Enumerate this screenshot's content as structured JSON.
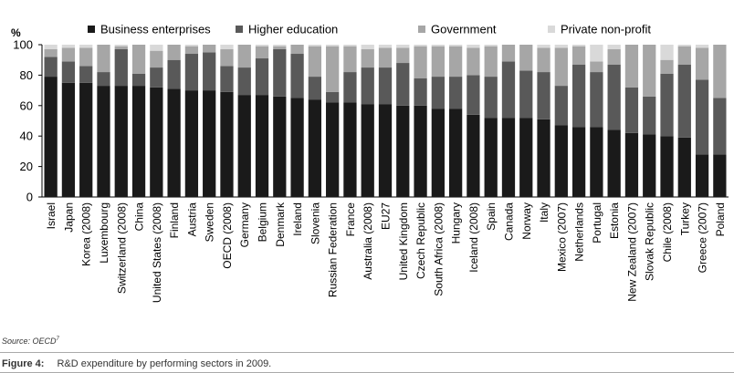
{
  "colors": {
    "business": "#1a1a1a",
    "higher": "#595959",
    "government": "#a6a6a6",
    "private": "#d9d9d9",
    "axis": "#000000",
    "text": "#000000"
  },
  "source": {
    "label": "Source: OECD",
    "ref": "7"
  },
  "caption": {
    "label": "Figure 4:",
    "text": "R&D expenditure by performing sectors in 2009."
  },
  "chart_data": {
    "type": "bar",
    "stacked": true,
    "title": "",
    "xlabel": "",
    "ylabel": "%",
    "ylim": [
      0,
      100
    ],
    "yticks": [
      0,
      20,
      40,
      60,
      80,
      100
    ],
    "legend_position": "top",
    "categories": [
      "Israel",
      "Japan",
      "Korea (2008)",
      "Luxembourg",
      "Switzerland (2008)",
      "China",
      "United States (2008)",
      "Finland",
      "Austria",
      "Sweden",
      "OECD (2008)",
      "Germany",
      "Belgium",
      "Denmark",
      "Ireland",
      "Slovenia",
      "Russian Federation",
      "France",
      "Australia (2008)",
      "EU27",
      "United Kingdom",
      "Czech Republic",
      "South Africa (2008)",
      "Hungary",
      "Iceland (2008)",
      "Spain",
      "Canada",
      "Norway",
      "Italy",
      "Mexico (2007)",
      "Netherlands",
      "Portugal",
      "Estonia",
      "New Zealand (2007)",
      "Slovak Republic",
      "Chile (2008)",
      "Turkey",
      "Greece (2007)",
      "Poland"
    ],
    "series": [
      {
        "name": "Business enterprises",
        "key": "business",
        "values": [
          79,
          75,
          75,
          73,
          73,
          73,
          72,
          71,
          70,
          70,
          69,
          67,
          67,
          66,
          65,
          64,
          62,
          62,
          61,
          61,
          60,
          60,
          58,
          58,
          54,
          52,
          52,
          52,
          51,
          47,
          46,
          46,
          44,
          42,
          41,
          40,
          39,
          28,
          28
        ]
      },
      {
        "name": "Higher education",
        "key": "higher",
        "values": [
          13,
          14,
          11,
          9,
          24,
          8,
          13,
          19,
          24,
          25,
          17,
          18,
          24,
          31,
          29,
          15,
          7,
          20,
          24,
          24,
          28,
          18,
          21,
          21,
          26,
          27,
          37,
          31,
          31,
          26,
          41,
          36,
          43,
          30,
          25,
          41,
          48,
          49,
          37
        ]
      },
      {
        "name": "Government",
        "key": "government",
        "values": [
          5,
          9,
          12,
          18,
          2,
          19,
          11,
          10,
          5,
          5,
          11,
          15,
          8,
          2,
          6,
          20,
          30,
          17,
          12,
          13,
          10,
          21,
          20,
          20,
          18,
          20,
          11,
          17,
          16,
          25,
          12,
          7,
          10,
          28,
          34,
          9,
          12,
          21,
          35
        ]
      },
      {
        "name": "Private non-profit",
        "key": "private",
        "values": [
          3,
          2,
          2,
          0,
          1,
          0,
          4,
          0,
          1,
          0,
          3,
          0,
          1,
          1,
          0,
          1,
          1,
          1,
          3,
          2,
          2,
          1,
          1,
          1,
          2,
          1,
          0,
          0,
          2,
          2,
          1,
          11,
          3,
          0,
          0,
          10,
          1,
          2,
          0
        ]
      }
    ]
  }
}
